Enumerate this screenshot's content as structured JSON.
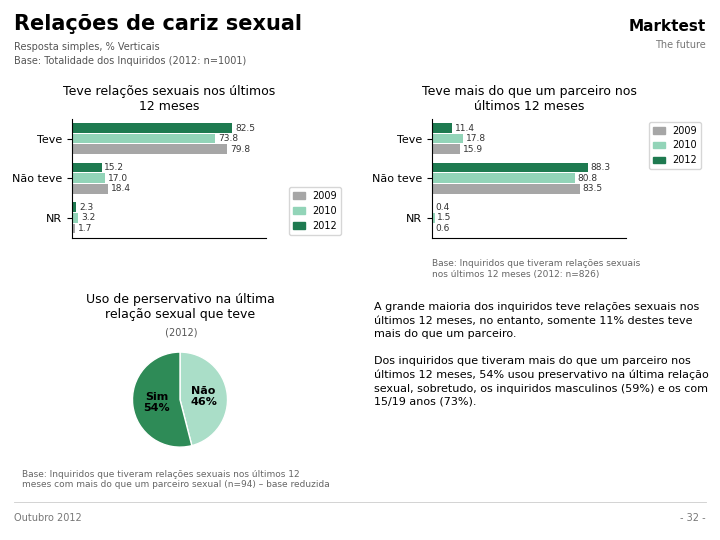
{
  "title": "Relações de cariz sexual",
  "subtitle": "Resposta simples, % Verticais",
  "annotations": [
    "Base: Totalidade dos Inquiridos (2012: n=1001)",
    "Marktest",
    "The future",
    "A grande maioria dos inquiridos teve relações sexuais nos últimos 12 meses, no entanto, somente 11% destes teve mais do que um parceiro.",
    "Dos inquiridos que tiveram mais do que um parceiro nos últimos 12 meses, 54% usou preservativo na última relação sexual, sobretudo, os inquiridos masculinos (59%) e os com 15/19 anos (73%).",
    "Outubro 2012",
    "- 32 -"
  ],
  "chart_data": [
    {
      "type": "bar",
      "orientation": "horizontal",
      "title": "Teve relações sexuais nos últimos\n12 meses",
      "categories": [
        "Teve",
        "Não teve",
        "NR"
      ],
      "series": [
        {
          "name": "2009",
          "color": "#a6a6a6",
          "values": [
            79.8,
            18.4,
            1.7
          ]
        },
        {
          "name": "2010",
          "color": "#92d4b8",
          "values": [
            73.8,
            17.0,
            3.2
          ]
        },
        {
          "name": "2012",
          "color": "#1e7a50",
          "values": [
            82.5,
            15.2,
            2.3
          ]
        }
      ],
      "xlim": [
        0,
        100
      ],
      "tick_labels": "y",
      "data_labels": true,
      "legend": "lower right"
    },
    {
      "type": "bar",
      "orientation": "horizontal",
      "title": "Teve mais do que um parceiro nos\núltimos 12 meses",
      "categories": [
        "Teve",
        "Não teve",
        "NR"
      ],
      "series": [
        {
          "name": "2009",
          "color": "#a6a6a6",
          "values": [
            15.9,
            83.5,
            0.6
          ]
        },
        {
          "name": "2010",
          "color": "#92d4b8",
          "values": [
            17.8,
            80.8,
            1.5
          ]
        },
        {
          "name": "2012",
          "color": "#1e7a50",
          "values": [
            11.4,
            88.3,
            0.4
          ]
        }
      ],
      "xlim": [
        0,
        110
      ],
      "tick_labels": "y",
      "data_labels": true,
      "legend": "upper right",
      "annotations": [
        "Base: Inquiridos que tiveram relações sexuais\nnos últimos 12 meses (2012: n=826)"
      ]
    },
    {
      "type": "pie",
      "title": "Uso de perservativo na última\nrelação sexual que teve",
      "subtitle": " (2012)",
      "values": [
        46,
        54
      ],
      "value_labels": [
        "Não\n46%",
        "Sim\n54%"
      ],
      "colors": [
        "#aadec8",
        "#2e8b57"
      ],
      "data_labels": true,
      "annotations": [
        "Base: Inquiridos que tiveram relações sexuais nos últimos 12\nmeses com mais do que um parceiro sexual (n=94) – base reduzida"
      ]
    }
  ]
}
